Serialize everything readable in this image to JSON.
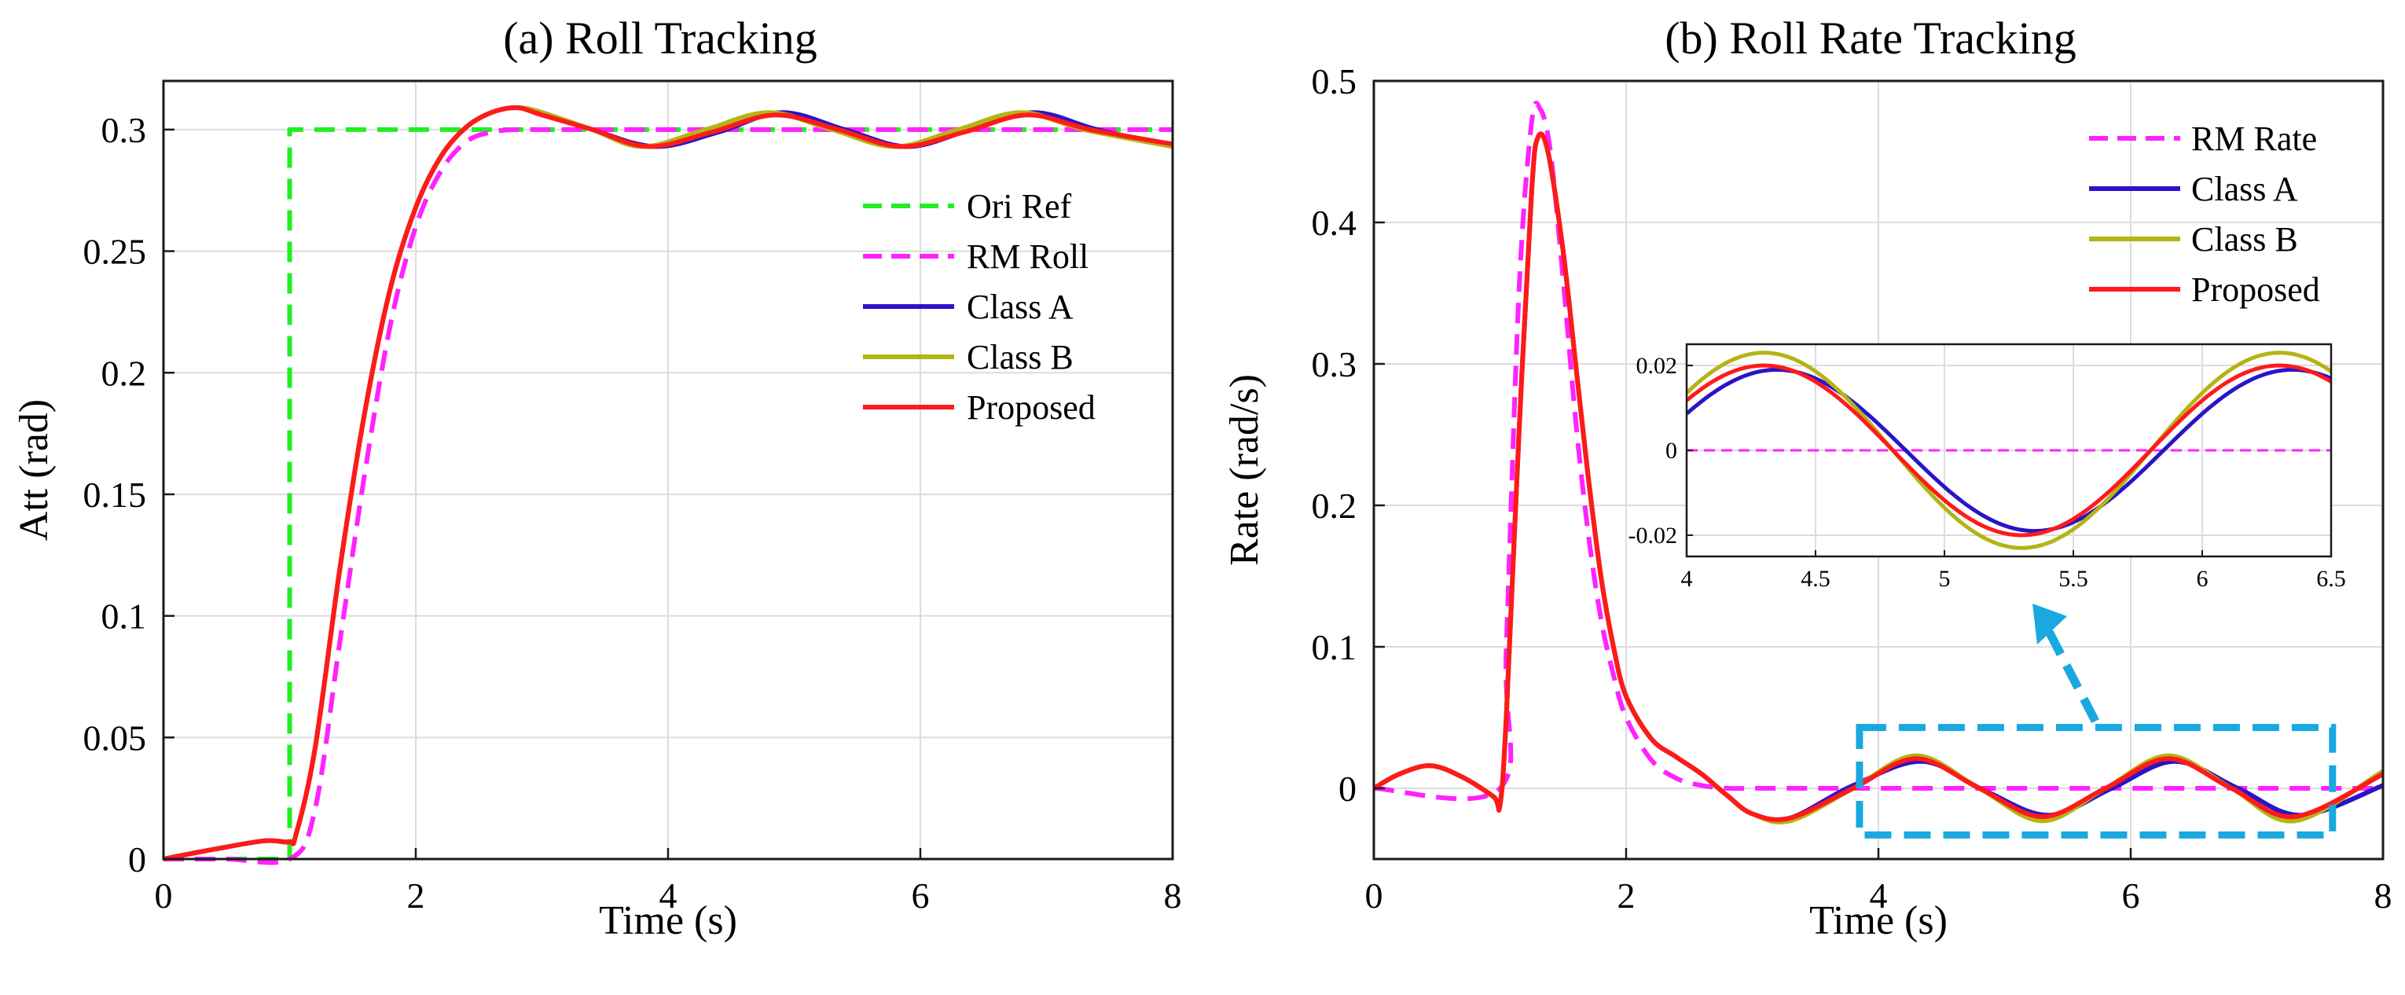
{
  "colors": {
    "ori_ref": "#22ee22",
    "rm": "#ff22ff",
    "class_a": "#2a14c8",
    "class_b": "#b4b414",
    "proposed": "#ff1a1a",
    "highlight": "#1aa8e0"
  },
  "chart_data": [
    {
      "id": "roll",
      "type": "line",
      "title": "(a) Roll Tracking",
      "xlabel": "Time (s)",
      "ylabel": "Att (rad)",
      "xlim": [
        0,
        8
      ],
      "ylim": [
        0,
        0.32
      ],
      "xticks": [
        0,
        2,
        4,
        6,
        8
      ],
      "xtick_labels": [
        "0",
        "2",
        "4",
        "6",
        "8"
      ],
      "yticks": [
        0,
        0.05,
        0.1,
        0.15,
        0.2,
        0.25,
        0.3
      ],
      "ytick_labels": [
        "0",
        "0.05",
        "0.1",
        "0.15",
        "0.2",
        "0.25",
        "0.3"
      ],
      "grid": true,
      "legend_position": "right",
      "series": [
        {
          "name": "Ori Ref",
          "style": "dashed",
          "color_key": "ori_ref",
          "x": [
            0,
            1.0,
            1.0,
            8
          ],
          "y": [
            0,
            0,
            0.3,
            0.3
          ]
        },
        {
          "name": "RM Roll",
          "style": "dashed",
          "color_key": "rm",
          "x": [
            0,
            0.5,
            1.0,
            1.2,
            1.4,
            1.6,
            1.8,
            2.0,
            2.2,
            2.4,
            2.6,
            2.8,
            3.0,
            3.5,
            4.0,
            5.0,
            6.0,
            7.0,
            8.0
          ],
          "y": [
            0,
            0,
            0,
            0.02,
            0.09,
            0.16,
            0.22,
            0.26,
            0.283,
            0.295,
            0.299,
            0.3,
            0.3,
            0.3,
            0.3,
            0.3,
            0.3,
            0.3,
            0.3
          ]
        },
        {
          "name": "Class A",
          "style": "solid",
          "color_key": "class_a",
          "x": [
            0,
            0.4,
            0.8,
            1.0,
            1.05,
            1.2,
            1.4,
            1.6,
            1.8,
            2.0,
            2.2,
            2.4,
            2.6,
            2.8,
            3.0,
            3.4,
            3.9,
            4.4,
            4.9,
            5.4,
            5.9,
            6.4,
            6.9,
            7.4,
            8.0
          ],
          "y": [
            0,
            0.004,
            0.0075,
            0.007,
            0.01,
            0.045,
            0.12,
            0.185,
            0.235,
            0.268,
            0.289,
            0.301,
            0.307,
            0.309,
            0.307,
            0.3,
            0.293,
            0.299,
            0.307,
            0.3,
            0.293,
            0.3,
            0.307,
            0.3,
            0.293
          ]
        },
        {
          "name": "Class B",
          "style": "solid",
          "color_key": "class_b",
          "x": [
            0,
            0.4,
            0.8,
            1.0,
            1.05,
            1.2,
            1.4,
            1.6,
            1.8,
            2.0,
            2.2,
            2.4,
            2.6,
            2.8,
            3.0,
            3.4,
            3.8,
            4.3,
            4.8,
            5.3,
            5.8,
            6.3,
            6.8,
            7.3,
            8.0
          ],
          "y": [
            0,
            0.004,
            0.0075,
            0.007,
            0.01,
            0.045,
            0.12,
            0.185,
            0.235,
            0.268,
            0.289,
            0.301,
            0.307,
            0.309,
            0.307,
            0.3,
            0.293,
            0.3,
            0.307,
            0.3,
            0.293,
            0.3,
            0.307,
            0.3,
            0.293
          ]
        },
        {
          "name": "Proposed",
          "style": "solid",
          "color_key": "proposed",
          "x": [
            0,
            0.4,
            0.8,
            1.0,
            1.05,
            1.2,
            1.4,
            1.6,
            1.8,
            2.0,
            2.2,
            2.4,
            2.6,
            2.8,
            3.0,
            3.4,
            3.85,
            4.35,
            4.85,
            5.35,
            5.85,
            6.35,
            6.85,
            7.35,
            8.0
          ],
          "y": [
            0,
            0.004,
            0.0075,
            0.007,
            0.01,
            0.045,
            0.12,
            0.185,
            0.235,
            0.268,
            0.289,
            0.301,
            0.307,
            0.309,
            0.306,
            0.3,
            0.293,
            0.299,
            0.306,
            0.3,
            0.293,
            0.299,
            0.306,
            0.3,
            0.294
          ]
        }
      ]
    },
    {
      "id": "rate",
      "type": "line",
      "title": "(b) Roll Rate Tracking",
      "xlabel": "Time (s)",
      "ylabel": "Rate (rad/s)",
      "xlim": [
        0,
        8
      ],
      "ylim": [
        -0.05,
        0.5
      ],
      "xticks": [
        0,
        2,
        4,
        6,
        8
      ],
      "xtick_labels": [
        "0",
        "2",
        "4",
        "6",
        "8"
      ],
      "yticks": [
        0,
        0.1,
        0.2,
        0.3,
        0.4,
        0.5
      ],
      "ytick_labels": [
        "0",
        "0.1",
        "0.2",
        "0.3",
        "0.4",
        "0.5"
      ],
      "grid": true,
      "legend_position": "top-right",
      "highlight_region": {
        "x": [
          3.85,
          7.6
        ],
        "y": [
          -0.033,
          0.043
        ]
      },
      "series": [
        {
          "name": "RM Rate",
          "style": "dashed",
          "color_key": "rm",
          "x": [
            0,
            1.0,
            1.05,
            1.15,
            1.25,
            1.32,
            1.4,
            1.5,
            1.6,
            1.7,
            1.8,
            1.9,
            2.0,
            2.2,
            2.4,
            2.6,
            2.8,
            3.0,
            3.5,
            4.0,
            5.0,
            6.0,
            7.0,
            8.0
          ],
          "y": [
            0,
            0,
            0.1,
            0.35,
            0.47,
            0.48,
            0.45,
            0.36,
            0.26,
            0.18,
            0.12,
            0.08,
            0.05,
            0.02,
            0.007,
            0.002,
            0.0,
            0.0,
            0.0,
            0.0,
            0.0,
            0.0,
            0.0,
            0.0
          ]
        },
        {
          "name": "Class A",
          "style": "solid",
          "color_key": "class_a",
          "x": [
            0,
            0.2,
            0.45,
            0.7,
            0.95,
            1.0,
            1.05,
            1.15,
            1.25,
            1.3,
            1.38,
            1.5,
            1.6,
            1.7,
            1.8,
            1.9,
            2.0,
            2.2,
            2.4,
            2.6,
            2.8,
            3.0,
            3.3,
            3.8,
            4.35,
            4.85,
            5.35,
            5.85,
            6.35,
            6.85,
            7.35,
            8.0
          ],
          "y": [
            0,
            0.01,
            0.016,
            0.008,
            -0.006,
            -0.012,
            0.05,
            0.25,
            0.42,
            0.46,
            0.45,
            0.38,
            0.3,
            0.22,
            0.15,
            0.1,
            0.065,
            0.035,
            0.022,
            0.01,
            -0.005,
            -0.018,
            -0.021,
            0.002,
            0.019,
            -0.002,
            -0.019,
            0.0,
            0.019,
            0.0,
            -0.019,
            0.002
          ]
        },
        {
          "name": "Class B",
          "style": "solid",
          "color_key": "class_b",
          "x": [
            0,
            0.2,
            0.45,
            0.7,
            0.95,
            1.0,
            1.05,
            1.15,
            1.25,
            1.3,
            1.38,
            1.5,
            1.6,
            1.7,
            1.8,
            1.9,
            2.0,
            2.2,
            2.4,
            2.6,
            2.8,
            3.0,
            3.3,
            3.8,
            4.3,
            4.8,
            5.3,
            5.8,
            6.3,
            6.8,
            7.3,
            8.0
          ],
          "y": [
            0,
            0.01,
            0.016,
            0.008,
            -0.006,
            -0.012,
            0.05,
            0.25,
            0.42,
            0.46,
            0.45,
            0.38,
            0.3,
            0.22,
            0.15,
            0.1,
            0.065,
            0.035,
            0.022,
            0.01,
            -0.005,
            -0.018,
            -0.023,
            0.0,
            0.023,
            0.0,
            -0.023,
            0.0,
            0.023,
            0.0,
            -0.023,
            0.012
          ]
        },
        {
          "name": "Proposed",
          "style": "solid",
          "color_key": "proposed",
          "x": [
            0,
            0.2,
            0.45,
            0.7,
            0.95,
            1.0,
            1.05,
            1.15,
            1.25,
            1.3,
            1.38,
            1.5,
            1.6,
            1.7,
            1.8,
            1.9,
            2.0,
            2.2,
            2.4,
            2.6,
            2.8,
            3.0,
            3.3,
            3.8,
            4.3,
            4.8,
            5.3,
            5.8,
            6.3,
            6.8,
            7.3,
            8.0
          ],
          "y": [
            0,
            0.01,
            0.016,
            0.008,
            -0.006,
            -0.012,
            0.05,
            0.25,
            0.42,
            0.46,
            0.45,
            0.38,
            0.3,
            0.22,
            0.15,
            0.1,
            0.065,
            0.035,
            0.022,
            0.01,
            -0.005,
            -0.018,
            -0.021,
            0.0,
            0.021,
            0.0,
            -0.02,
            0.0,
            0.021,
            0.0,
            -0.02,
            0.01
          ]
        }
      ],
      "inset": {
        "xlim": [
          4,
          6.5
        ],
        "ylim": [
          -0.025,
          0.025
        ],
        "xticks": [
          4,
          4.5,
          5,
          5.5,
          6,
          6.5
        ],
        "xtick_labels": [
          "4",
          "4.5",
          "5",
          "5.5",
          "6",
          "6.5"
        ],
        "yticks": [
          -0.02,
          0,
          0.02
        ],
        "ytick_labels": [
          "-0.02",
          "0",
          "0.02"
        ],
        "series": [
          {
            "name": "RM Rate",
            "style": "dashed",
            "color_key": "rm",
            "x": [
              4,
              6.5
            ],
            "y": [
              0,
              0
            ]
          },
          {
            "name": "Class A",
            "style": "solid",
            "color_key": "class_a",
            "model": "sine",
            "amplitude": 0.019,
            "period": 2.0,
            "peak_at": 4.35
          },
          {
            "name": "Class B",
            "style": "solid",
            "color_key": "class_b",
            "model": "sine",
            "amplitude": 0.023,
            "period": 2.0,
            "peak_at": 4.3
          },
          {
            "name": "Proposed",
            "style": "solid",
            "color_key": "proposed",
            "model": "sine",
            "amplitude": 0.02,
            "period": 2.0,
            "peak_at": 4.3
          }
        ]
      }
    }
  ]
}
